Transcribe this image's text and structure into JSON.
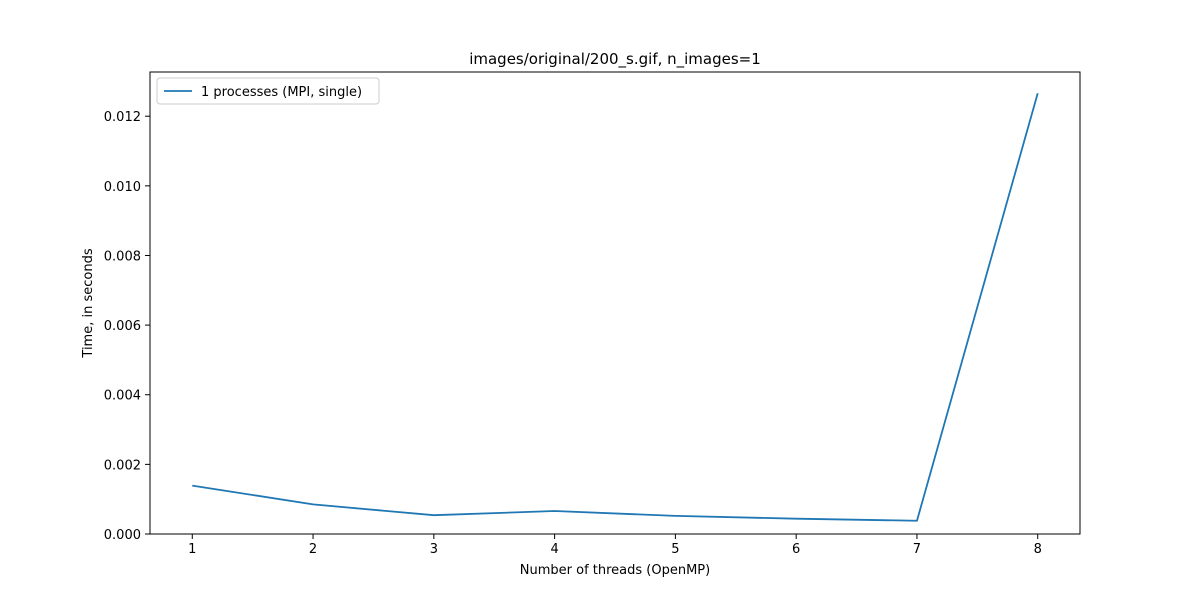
{
  "chart_data": {
    "type": "line",
    "title": "images/original/200_s.gif, n_images=1",
    "xlabel": "Number of threads (OpenMP)",
    "ylabel": "Time, in seconds",
    "x": [
      1,
      2,
      3,
      4,
      5,
      6,
      7,
      8
    ],
    "xlim": [
      0.65,
      8.35
    ],
    "ylim": [
      0,
      0.01327
    ],
    "xticks": [
      "1",
      "2",
      "3",
      "4",
      "5",
      "6",
      "7",
      "8"
    ],
    "yticks": [
      {
        "value": 0.0,
        "label": "0.000"
      },
      {
        "value": 0.002,
        "label": "0.002"
      },
      {
        "value": 0.004,
        "label": "0.004"
      },
      {
        "value": 0.006,
        "label": "0.006"
      },
      {
        "value": 0.008,
        "label": "0.008"
      },
      {
        "value": 0.01,
        "label": "0.010"
      },
      {
        "value": 0.012,
        "label": "0.012"
      }
    ],
    "grid": false,
    "legend_position": "upper-left",
    "series": [
      {
        "name": "1 processes (MPI, single)",
        "color": "#1f77b4",
        "values": [
          0.00139,
          0.00085,
          0.00054,
          0.00066,
          0.00052,
          0.00044,
          0.00038,
          0.01266
        ]
      }
    ]
  }
}
